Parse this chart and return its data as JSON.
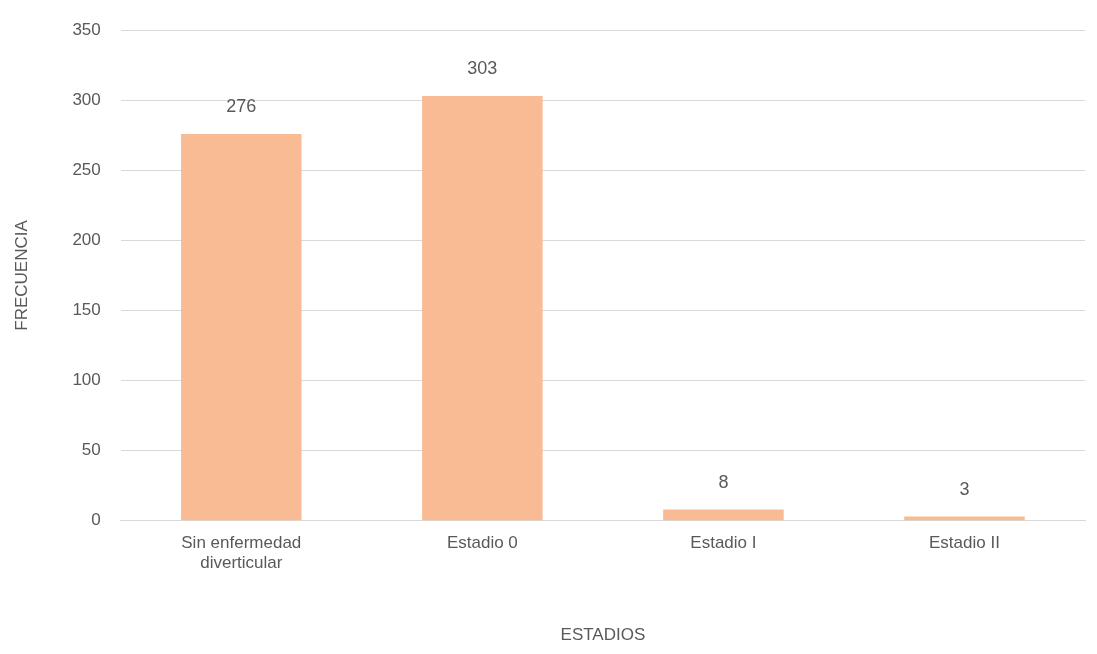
{
  "chart_data": {
    "type": "bar",
    "xlabel": "ESTADIOS",
    "ylabel": "FRECUENCIA",
    "categories": [
      "Sin enfermedad diverticular",
      "Estadio 0",
      "Estadio I",
      "Estadio II"
    ],
    "values": [
      276,
      303,
      8,
      3
    ],
    "color": "#f8bb94",
    "ylim": [
      0,
      350
    ],
    "yticks": [
      0,
      50,
      100,
      150,
      200,
      250,
      300,
      350
    ],
    "grid": "y",
    "data_labels": true,
    "legend": false
  }
}
